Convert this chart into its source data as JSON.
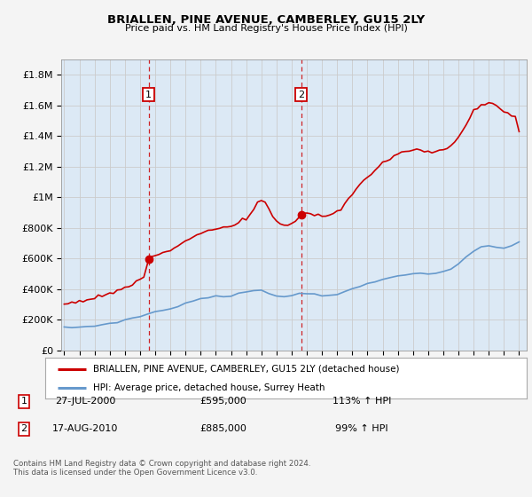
{
  "title": "BRIALLEN, PINE AVENUE, CAMBERLEY, GU15 2LY",
  "subtitle": "Price paid vs. HM Land Registry's House Price Index (HPI)",
  "figure_bg": "#f4f4f4",
  "plot_bg_color": "#dce9f5",
  "legend_label_red": "BRIALLEN, PINE AVENUE, CAMBERLEY, GU15 2LY (detached house)",
  "legend_label_blue": "HPI: Average price, detached house, Surrey Heath",
  "footer": "Contains HM Land Registry data © Crown copyright and database right 2024.\nThis data is licensed under the Open Government Licence v3.0.",
  "transaction1_date": "27-JUL-2000",
  "transaction1_price": "£595,000",
  "transaction1_hpi": "113% ↑ HPI",
  "transaction1_year": 2000.57,
  "transaction1_value": 595000,
  "transaction2_date": "17-AUG-2010",
  "transaction2_price": "£885,000",
  "transaction2_hpi": "99% ↑ HPI",
  "transaction2_year": 2010.62,
  "transaction2_value": 885000,
  "red_color": "#cc0000",
  "blue_color": "#6699cc",
  "dashed_line_color": "#cc0000",
  "ylim": [
    0,
    1900000
  ],
  "xlim_start": 1994.8,
  "xlim_end": 2025.5
}
